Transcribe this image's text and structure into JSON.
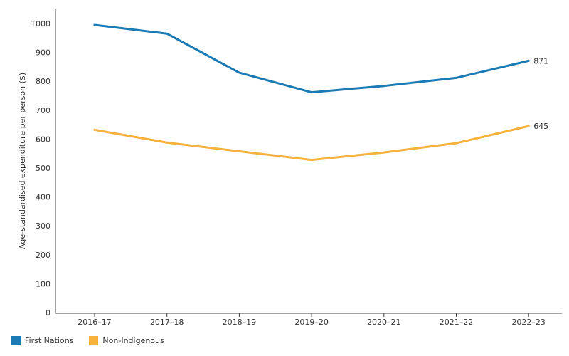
{
  "chart_data": {
    "type": "line",
    "title": "",
    "xlabel": "",
    "ylabel": "Age-standardised expenditure per person ($)",
    "categories": [
      "2016–17",
      "2017–18",
      "2018–19",
      "2019–20",
      "2020–21",
      "2021–22",
      "2022–23"
    ],
    "ylim": [
      0,
      1000
    ],
    "yticks": [
      0,
      100,
      200,
      300,
      400,
      500,
      600,
      700,
      800,
      900,
      1000
    ],
    "grid": false,
    "legend_position": "bottom-left",
    "series": [
      {
        "name": "First Nations",
        "color": "#1a7ab4",
        "values": [
          995,
          965,
          830,
          762,
          784,
          812,
          871
        ],
        "end_label": "871"
      },
      {
        "name": "Non-Indigenous",
        "color": "#f6b23d",
        "values": [
          632,
          588,
          558,
          528,
          554,
          586,
          645
        ],
        "end_label": "645"
      }
    ]
  }
}
